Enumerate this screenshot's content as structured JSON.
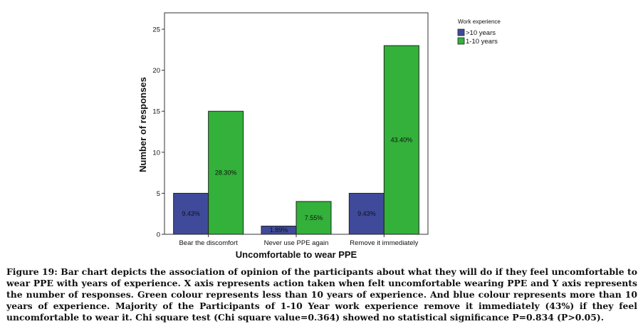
{
  "chart_data": {
    "type": "bar",
    "xlabel": "Uncomfortable to wear PPE",
    "ylabel": "Number of responses",
    "ylim": [
      0,
      27
    ],
    "yticks": [
      0,
      5,
      10,
      15,
      20,
      25
    ],
    "grid": false,
    "legend_title": "Work experience",
    "legend_position": "top-right, outside plot",
    "categories": [
      "Bear the discomfort",
      "Never use PPE again",
      "Remove it immediately"
    ],
    "series": [
      {
        "name": ">10 years",
        "color": "#3f4a9b",
        "values": [
          5,
          1,
          5
        ],
        "labels": [
          "9.43%",
          "1.89%",
          "9.43%"
        ]
      },
      {
        "name": "1-10 years",
        "color": "#33b13a",
        "values": [
          15,
          4,
          23
        ],
        "labels": [
          "28.30%",
          "7.55%",
          "43.40%"
        ]
      }
    ]
  },
  "caption": "Figure 19: Bar chart depicts the association of opinion of the participants about what they will do if they feel uncomfortable to wear PPE with years of experience. X axis represents action taken when felt uncomfortable wearing PPE and Y axis represents the number of responses. Green colour represents less than 10 years of experience. And blue colour represents more than 10 years of experience. Majority of the Participants of 1-10 Year work experience remove it immediately (43%) if they feel uncomfortable to wear it. Chi square test (Chi square value=0.364) showed no statistical significance P=0.834 (P>0.05)."
}
